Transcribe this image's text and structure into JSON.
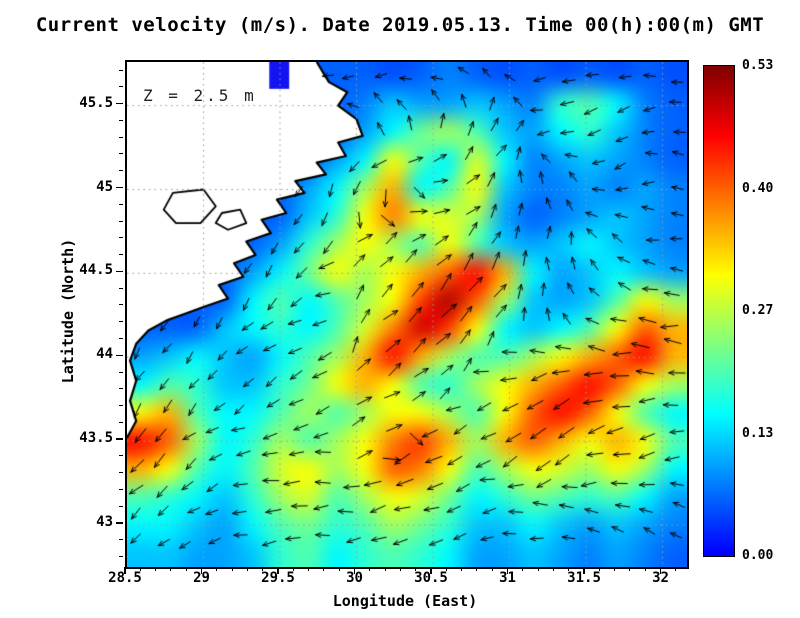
{
  "title": "Current velocity (m/s). Date 2019.05.13. Time 00(h):00(m) GMT",
  "annotation": "Z = 2.5 m",
  "axes": {
    "xlabel": "Longitude (East)",
    "ylabel": "Latitude (North)",
    "x_ticks": [
      28.5,
      29,
      29.5,
      30,
      30.5,
      31,
      31.5,
      32
    ],
    "x_tick_labels": [
      "28.5",
      "29",
      "29.5",
      "30",
      "30.5",
      "31",
      "31.5",
      "32"
    ],
    "y_ticks": [
      43,
      43.5,
      44,
      44.5,
      45,
      45.5
    ],
    "y_tick_labels": [
      "43",
      "43.5",
      "44",
      "44.5",
      "45",
      "45.5"
    ],
    "x_range": [
      28.5,
      32.16
    ],
    "y_range": [
      42.75,
      45.76
    ],
    "grid": "dotted"
  },
  "colorbar": {
    "min": 0.0,
    "max": 0.53,
    "tick_labels": [
      "0.53",
      "0.40",
      "0.27",
      "0.13",
      "0.00"
    ],
    "colormap": "jet",
    "low_color": "#1414f0",
    "high_color": "#800000"
  },
  "chart_data": {
    "type": "heatmap",
    "title": "Current velocity (m/s). Date 2019.05.13. Time 00(h):00(m) GMT",
    "units": "m/s",
    "depth_label": "Z = 2.5 m",
    "lon_range": [
      28.5,
      32.16
    ],
    "lat_range": [
      42.75,
      45.76
    ],
    "grid_cols": 20,
    "grid_rows": 18,
    "land_value": -1,
    "speed_grid": [
      [
        -1,
        -1,
        -1,
        -1,
        -1,
        -1,
        -1,
        0.06,
        0.06,
        0.05,
        0.06,
        0.08,
        0.06,
        0.05,
        0.06,
        0.05,
        0.06,
        0.05,
        0.06,
        0.05
      ],
      [
        -1,
        -1,
        -1,
        -1,
        -1,
        -1,
        -1,
        -1,
        0.08,
        0.12,
        0.1,
        0.1,
        0.12,
        0.1,
        0.08,
        0.18,
        0.2,
        0.15,
        0.08,
        0.06
      ],
      [
        -1,
        -1,
        -1,
        -1,
        -1,
        -1,
        -1,
        -1,
        0.1,
        0.15,
        0.22,
        0.25,
        0.2,
        0.12,
        0.1,
        0.15,
        0.18,
        0.12,
        0.08,
        0.06
      ],
      [
        -1,
        -1,
        -1,
        -1,
        -1,
        -1,
        -1,
        0.1,
        0.15,
        0.3,
        0.2,
        0.15,
        0.28,
        0.15,
        0.08,
        0.1,
        0.12,
        0.1,
        0.08,
        0.06
      ],
      [
        -1,
        -1,
        -1,
        -1,
        -1,
        -1,
        0.1,
        0.15,
        0.25,
        0.35,
        0.15,
        0.2,
        0.3,
        0.12,
        0.08,
        0.08,
        0.1,
        0.08,
        0.1,
        0.08
      ],
      [
        -1,
        -1,
        -1,
        -1,
        -1,
        -1,
        0.12,
        0.18,
        0.3,
        0.38,
        0.3,
        0.28,
        0.25,
        0.1,
        0.06,
        0.08,
        0.1,
        0.12,
        0.1,
        0.08
      ],
      [
        -1,
        -1,
        -1,
        -1,
        -1,
        0.1,
        0.18,
        0.25,
        0.3,
        0.25,
        0.2,
        0.3,
        0.2,
        0.12,
        0.1,
        0.12,
        0.15,
        0.12,
        0.1,
        0.08
      ],
      [
        -1,
        -1,
        -1,
        -1,
        0.1,
        0.15,
        0.22,
        0.3,
        0.25,
        0.3,
        0.35,
        0.4,
        0.45,
        0.35,
        0.15,
        0.1,
        0.12,
        0.15,
        0.12,
        0.1
      ],
      [
        -1,
        -1,
        -1,
        -1,
        0.15,
        0.2,
        0.15,
        0.2,
        0.25,
        0.3,
        0.42,
        0.5,
        0.4,
        0.25,
        0.12,
        0.1,
        0.12,
        0.2,
        0.3,
        0.25
      ],
      [
        -1,
        -1,
        -1,
        0.12,
        0.15,
        0.18,
        0.15,
        0.2,
        0.28,
        0.38,
        0.48,
        0.42,
        0.3,
        0.15,
        0.12,
        0.15,
        0.2,
        0.3,
        0.4,
        0.35
      ],
      [
        0.1,
        0.12,
        0.15,
        0.12,
        0.1,
        0.15,
        0.2,
        0.25,
        0.35,
        0.45,
        0.35,
        0.25,
        0.2,
        0.2,
        0.25,
        0.3,
        0.35,
        0.4,
        0.45,
        0.35
      ],
      [
        0.15,
        0.2,
        0.18,
        0.12,
        0.12,
        0.18,
        0.22,
        0.3,
        0.35,
        0.3,
        0.2,
        0.18,
        0.25,
        0.3,
        0.35,
        0.4,
        0.45,
        0.4,
        0.3,
        0.25
      ],
      [
        0.3,
        0.35,
        0.2,
        0.15,
        0.15,
        0.2,
        0.25,
        0.2,
        0.25,
        0.3,
        0.3,
        0.25,
        0.2,
        0.3,
        0.4,
        0.45,
        0.4,
        0.3,
        0.2,
        0.15
      ],
      [
        0.45,
        0.4,
        0.25,
        0.15,
        0.18,
        0.25,
        0.2,
        0.25,
        0.3,
        0.38,
        0.42,
        0.35,
        0.25,
        0.35,
        0.4,
        0.35,
        0.3,
        0.35,
        0.3,
        0.2
      ],
      [
        0.35,
        0.3,
        0.2,
        0.15,
        0.2,
        0.28,
        0.3,
        0.25,
        0.3,
        0.4,
        0.38,
        0.3,
        0.2,
        0.25,
        0.3,
        0.28,
        0.25,
        0.3,
        0.25,
        0.15
      ],
      [
        0.2,
        0.18,
        0.15,
        0.12,
        0.18,
        0.25,
        0.28,
        0.2,
        0.25,
        0.3,
        0.28,
        0.22,
        0.15,
        0.18,
        0.22,
        0.2,
        0.18,
        0.2,
        0.15,
        0.1
      ],
      [
        0.15,
        0.15,
        0.12,
        0.1,
        0.15,
        0.2,
        0.22,
        0.18,
        0.2,
        0.25,
        0.22,
        0.18,
        0.12,
        0.12,
        0.15,
        0.12,
        0.1,
        0.12,
        0.1,
        0.08
      ],
      [
        0.12,
        0.12,
        0.1,
        0.1,
        0.12,
        0.18,
        0.2,
        0.15,
        0.18,
        0.2,
        0.18,
        0.15,
        0.1,
        0.1,
        0.12,
        0.1,
        0.08,
        0.1,
        0.08,
        0.06
      ]
    ],
    "vector_field": {
      "cols": 10,
      "rows": 9,
      "angle_convention": "degrees, 0 = east, counterclockwise positive",
      "angles_deg": [
        [
          200,
          200,
          200,
          200,
          200,
          180,
          160,
          190,
          200,
          180
        ],
        [
          210,
          210,
          210,
          210,
          120,
          90,
          40,
          200,
          190,
          170
        ],
        [
          230,
          230,
          230,
          250,
          260,
          350,
          80,
          120,
          200,
          180
        ],
        [
          250,
          250,
          240,
          220,
          40,
          50,
          60,
          90,
          150,
          170
        ],
        [
          250,
          240,
          230,
          200,
          45,
          50,
          40,
          120,
          160,
          180
        ],
        [
          240,
          230,
          220,
          210,
          40,
          30,
          200,
          210,
          190,
          170
        ],
        [
          230,
          220,
          200,
          190,
          10,
          200,
          210,
          220,
          200,
          190
        ],
        [
          220,
          210,
          190,
          180,
          190,
          200,
          190,
          180,
          170,
          160
        ],
        [
          210,
          200,
          190,
          180,
          185,
          190,
          180,
          170,
          160,
          150
        ]
      ],
      "arrow_spacing_px": 27,
      "arrow_seed": 7
    },
    "coastline": [
      [
        29.74,
        45.76
      ],
      [
        29.82,
        45.64
      ],
      [
        29.94,
        45.58
      ],
      [
        29.88,
        45.5
      ],
      [
        30.0,
        45.42
      ],
      [
        30.04,
        45.32
      ],
      [
        29.88,
        45.28
      ],
      [
        29.93,
        45.2
      ],
      [
        29.74,
        45.16
      ],
      [
        29.8,
        45.09
      ],
      [
        29.6,
        45.05
      ],
      [
        29.66,
        44.98
      ],
      [
        29.48,
        44.94
      ],
      [
        29.54,
        44.86
      ],
      [
        29.38,
        44.82
      ],
      [
        29.44,
        44.74
      ],
      [
        29.28,
        44.69
      ],
      [
        29.34,
        44.61
      ],
      [
        29.2,
        44.56
      ],
      [
        29.26,
        44.48
      ],
      [
        29.1,
        44.43
      ],
      [
        29.16,
        44.35
      ],
      [
        29.0,
        44.3
      ],
      [
        28.88,
        44.26
      ],
      [
        28.76,
        44.22
      ],
      [
        28.64,
        44.16
      ],
      [
        28.56,
        44.08
      ],
      [
        28.52,
        43.98
      ],
      [
        28.56,
        43.86
      ],
      [
        28.52,
        43.74
      ],
      [
        28.56,
        43.62
      ],
      [
        28.5,
        43.52
      ]
    ],
    "lakes": [
      [
        [
          28.8,
          44.98
        ],
        [
          29.0,
          45.0
        ],
        [
          29.08,
          44.9
        ],
        [
          28.98,
          44.8
        ],
        [
          28.82,
          44.8
        ],
        [
          28.74,
          44.88
        ]
      ],
      [
        [
          29.12,
          44.86
        ],
        [
          29.24,
          44.88
        ],
        [
          29.28,
          44.8
        ],
        [
          29.16,
          44.76
        ],
        [
          29.08,
          44.8
        ]
      ]
    ],
    "coastal_patch": {
      "lon": [
        29.43,
        29.56
      ],
      "lat": [
        45.6,
        45.76
      ],
      "color": "#1414f0"
    }
  }
}
